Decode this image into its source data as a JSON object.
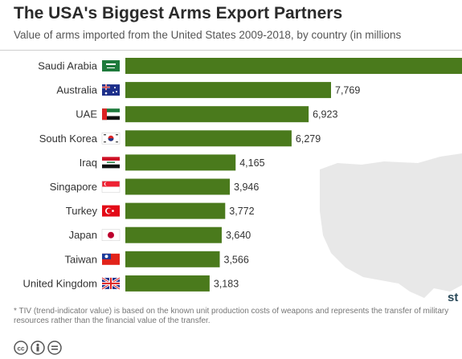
{
  "header": {
    "title": "The USA's Biggest Arms Export Partners",
    "subtitle": "Value of arms imported from the United States 2009-2018, by country (in millions"
  },
  "chart_data": {
    "type": "bar",
    "orientation": "horizontal",
    "categories": [
      "Saudi Arabia",
      "Australia",
      "UAE",
      "South Korea",
      "Iraq",
      "Singapore",
      "Turkey",
      "Japan",
      "Taiwan",
      "United Kingdom"
    ],
    "values": [
      null,
      7769,
      6923,
      6279,
      4165,
      3946,
      3772,
      3640,
      3566,
      3183
    ],
    "value_labels": [
      "",
      "7,769",
      "6,923",
      "6,279",
      "4,165",
      "3,946",
      "3,772",
      "3,640",
      "3,566",
      "3,183"
    ],
    "title": "The USA's Biggest Arms Export Partners",
    "xlabel": "",
    "ylabel": "",
    "bar_color": "#4a7a1c",
    "flags": [
      "saudi-arabia-flag-icon",
      "australia-flag-icon",
      "uae-flag-icon",
      "south-korea-flag-icon",
      "iraq-flag-icon",
      "singapore-flag-icon",
      "turkey-flag-icon",
      "japan-flag-icon",
      "taiwan-flag-icon",
      "united-kingdom-flag-icon"
    ]
  },
  "footnote": "* TIV (trend-indicator value) is based on the known unit production costs of weapons and represents the transfer of military resources rather than the financial value of the transfer.",
  "footer": {
    "icons": [
      "cc-icon",
      "by-icon",
      "equals-icon"
    ],
    "brand": "st"
  }
}
